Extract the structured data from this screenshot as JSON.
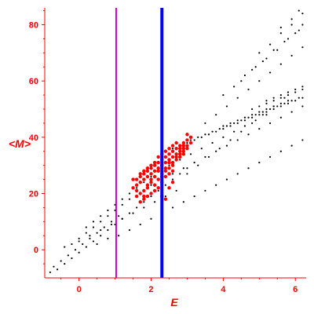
{
  "chart_data": {
    "type": "scatter",
    "title": "",
    "xlabel": "E",
    "ylabel": "<M>",
    "xlim": [
      -0.95,
      6.3
    ],
    "ylim": [
      -10,
      86
    ],
    "x_ticks": [
      0,
      2,
      4,
      6
    ],
    "y_ticks": [
      0,
      20,
      40,
      60,
      80
    ],
    "x_tick_labels": [
      "0",
      "2",
      "4",
      "6"
    ],
    "y_tick_labels": [
      "0",
      "20",
      "40",
      "60",
      "80"
    ],
    "grid": false,
    "legend": "none",
    "colors": {
      "axes": "#ff0000",
      "main_points": "#000000",
      "highlight_points": "#ff0000",
      "line_magenta": "#cc00cc",
      "line_blue": "#0000ff"
    },
    "vertical_lines": [
      {
        "x": 1.03,
        "color": "#cc00cc"
      },
      {
        "x": 2.3,
        "color": "#0000ff"
      }
    ],
    "series": [
      {
        "color": "#000000",
        "points": [
          [
            -0.8,
            -8
          ],
          [
            -0.6,
            -7
          ],
          [
            -0.4,
            -5
          ],
          [
            -0.2,
            -3
          ],
          [
            0.0,
            -1
          ],
          [
            0.2,
            1
          ],
          [
            0.4,
            3
          ],
          [
            0.6,
            5
          ],
          [
            0.8,
            7
          ],
          [
            1.0,
            9
          ],
          [
            1.2,
            11
          ],
          [
            1.4,
            13
          ],
          [
            1.6,
            15
          ],
          [
            1.8,
            17
          ],
          [
            2.0,
            19
          ],
          [
            2.2,
            21
          ],
          [
            2.4,
            23
          ],
          [
            2.6,
            25
          ],
          [
            2.8,
            27
          ],
          [
            3.0,
            29
          ],
          [
            -0.7,
            -6
          ],
          [
            -0.5,
            -4
          ],
          [
            -0.3,
            -2
          ],
          [
            -0.1,
            0
          ],
          [
            0.1,
            2
          ],
          [
            0.3,
            4
          ],
          [
            0.5,
            6
          ],
          [
            0.7,
            8
          ],
          [
            0.9,
            10
          ],
          [
            1.1,
            12
          ],
          [
            -0.4,
            1
          ],
          [
            -0.2,
            2
          ],
          [
            0.0,
            4
          ],
          [
            0.2,
            6
          ],
          [
            0.4,
            8
          ],
          [
            0.6,
            10
          ],
          [
            0.8,
            12
          ],
          [
            1.0,
            14
          ],
          [
            1.2,
            16
          ],
          [
            1.4,
            18
          ],
          [
            0.2,
            8
          ],
          [
            0.4,
            10
          ],
          [
            0.6,
            12
          ],
          [
            0.8,
            14
          ],
          [
            1.0,
            16
          ],
          [
            1.2,
            18
          ],
          [
            1.4,
            20
          ],
          [
            1.6,
            22
          ],
          [
            1.8,
            24
          ],
          [
            2.0,
            26
          ],
          [
            0.0,
            3
          ],
          [
            0.3,
            5
          ],
          [
            0.6,
            7
          ],
          [
            0.9,
            9
          ],
          [
            1.2,
            11
          ],
          [
            1.5,
            13
          ],
          [
            1.8,
            15
          ],
          [
            2.1,
            17
          ],
          [
            2.4,
            19
          ],
          [
            2.7,
            21
          ],
          [
            0.5,
            2
          ],
          [
            0.8,
            4
          ],
          [
            1.1,
            5
          ],
          [
            1.4,
            7
          ],
          [
            1.7,
            9
          ],
          [
            2.0,
            11
          ],
          [
            2.3,
            13
          ],
          [
            2.6,
            15
          ],
          [
            2.9,
            17
          ],
          [
            3.2,
            19
          ],
          [
            3.5,
            21
          ],
          [
            3.8,
            23
          ],
          [
            4.1,
            25
          ],
          [
            4.4,
            27
          ],
          [
            4.7,
            29
          ],
          [
            5.0,
            31
          ],
          [
            5.3,
            33
          ],
          [
            5.6,
            35
          ],
          [
            5.9,
            37
          ],
          [
            6.2,
            39
          ],
          [
            3.0,
            27
          ],
          [
            3.3,
            30
          ],
          [
            3.6,
            33
          ],
          [
            3.9,
            36
          ],
          [
            4.2,
            39
          ],
          [
            4.5,
            42
          ],
          [
            4.8,
            45
          ],
          [
            5.1,
            48
          ],
          [
            5.4,
            51
          ],
          [
            5.7,
            54
          ],
          [
            2.6,
            36
          ],
          [
            2.8,
            37
          ],
          [
            3.0,
            38
          ],
          [
            3.2,
            39
          ],
          [
            3.4,
            40
          ],
          [
            3.6,
            41
          ],
          [
            3.8,
            42
          ],
          [
            4.0,
            43
          ],
          [
            4.2,
            44
          ],
          [
            4.4,
            45
          ],
          [
            4.6,
            46
          ],
          [
            4.8,
            47
          ],
          [
            5.0,
            48
          ],
          [
            5.2,
            49
          ],
          [
            5.4,
            50
          ],
          [
            5.6,
            51
          ],
          [
            5.8,
            52
          ],
          [
            6.0,
            53
          ],
          [
            6.2,
            54
          ],
          [
            3.1,
            39
          ],
          [
            3.3,
            40
          ],
          [
            3.5,
            41
          ],
          [
            3.7,
            42
          ],
          [
            3.9,
            43
          ],
          [
            4.1,
            44
          ],
          [
            4.3,
            45
          ],
          [
            4.5,
            46
          ],
          [
            4.7,
            47
          ],
          [
            4.9,
            48
          ],
          [
            5.1,
            49
          ],
          [
            5.3,
            50
          ],
          [
            5.5,
            51
          ],
          [
            5.7,
            52
          ],
          [
            5.9,
            53
          ],
          [
            6.1,
            54
          ],
          [
            4.0,
            44
          ],
          [
            4.2,
            45
          ],
          [
            4.4,
            46
          ],
          [
            4.6,
            47
          ],
          [
            4.8,
            48
          ],
          [
            5.0,
            49
          ],
          [
            5.2,
            50
          ],
          [
            5.4,
            51
          ],
          [
            5.6,
            52
          ],
          [
            5.8,
            53
          ],
          [
            4.8,
            50
          ],
          [
            5.0,
            51
          ],
          [
            5.2,
            52
          ],
          [
            5.4,
            53
          ],
          [
            5.6,
            54
          ],
          [
            5.8,
            55
          ],
          [
            6.0,
            56
          ],
          [
            6.2,
            57
          ],
          [
            5.2,
            53
          ],
          [
            5.4,
            54
          ],
          [
            5.6,
            55
          ],
          [
            5.8,
            56
          ],
          [
            6.0,
            57
          ],
          [
            6.2,
            58
          ],
          [
            4.0,
            55
          ],
          [
            4.3,
            58
          ],
          [
            4.6,
            62
          ],
          [
            4.9,
            65
          ],
          [
            5.2,
            68
          ],
          [
            5.5,
            71
          ],
          [
            5.8,
            75
          ],
          [
            6.1,
            78
          ],
          [
            4.5,
            60
          ],
          [
            4.8,
            64
          ],
          [
            5.1,
            67
          ],
          [
            5.4,
            71
          ],
          [
            5.7,
            74
          ],
          [
            6.0,
            77
          ],
          [
            6.2,
            80
          ],
          [
            5.0,
            70
          ],
          [
            5.3,
            73
          ],
          [
            5.6,
            77
          ],
          [
            5.9,
            80
          ],
          [
            6.2,
            84
          ],
          [
            5.6,
            79
          ],
          [
            5.9,
            82
          ],
          [
            6.1,
            85
          ],
          [
            3.5,
            45
          ],
          [
            3.8,
            48
          ],
          [
            4.1,
            51
          ],
          [
            4.4,
            54
          ],
          [
            4.7,
            57
          ],
          [
            5.0,
            60
          ],
          [
            5.3,
            63
          ],
          [
            5.6,
            66
          ],
          [
            5.9,
            69
          ],
          [
            6.2,
            72
          ],
          [
            2.5,
            30
          ],
          [
            2.8,
            32
          ],
          [
            3.1,
            34
          ],
          [
            3.4,
            36
          ],
          [
            3.7,
            38
          ],
          [
            4.0,
            40
          ],
          [
            4.3,
            42
          ],
          [
            4.6,
            44
          ],
          [
            4.9,
            46
          ],
          [
            5.2,
            48
          ],
          [
            2.0,
            23
          ],
          [
            2.3,
            25
          ],
          [
            2.6,
            27
          ],
          [
            2.9,
            29
          ],
          [
            3.2,
            31
          ],
          [
            3.5,
            33
          ],
          [
            3.8,
            35
          ],
          [
            4.1,
            37
          ],
          [
            4.4,
            39
          ],
          [
            4.7,
            41
          ],
          [
            5.0,
            43
          ],
          [
            5.3,
            45
          ],
          [
            5.6,
            47
          ],
          [
            5.9,
            49
          ],
          [
            6.2,
            51
          ]
        ]
      },
      {
        "color": "#ff0000",
        "points": [
          [
            1.7,
            26
          ],
          [
            1.8,
            27
          ],
          [
            1.9,
            28
          ],
          [
            2.0,
            29
          ],
          [
            2.1,
            30
          ],
          [
            2.2,
            31
          ],
          [
            2.3,
            32
          ],
          [
            2.4,
            33
          ],
          [
            2.5,
            34
          ],
          [
            2.6,
            35
          ],
          [
            2.7,
            36
          ],
          [
            2.8,
            37
          ],
          [
            2.9,
            38
          ],
          [
            3.0,
            39
          ],
          [
            3.1,
            38
          ],
          [
            3.0,
            37
          ],
          [
            2.9,
            36
          ],
          [
            2.8,
            35
          ],
          [
            2.7,
            34
          ],
          [
            2.6,
            33
          ],
          [
            2.5,
            32
          ],
          [
            2.4,
            31
          ],
          [
            2.3,
            30
          ],
          [
            2.2,
            29
          ],
          [
            2.1,
            28
          ],
          [
            2.0,
            27
          ],
          [
            1.9,
            26
          ],
          [
            1.8,
            25
          ],
          [
            1.7,
            24
          ],
          [
            1.6,
            23
          ],
          [
            1.5,
            22
          ],
          [
            1.6,
            21
          ],
          [
            1.7,
            20
          ],
          [
            1.8,
            19
          ],
          [
            1.9,
            22
          ],
          [
            2.0,
            24
          ],
          [
            2.1,
            26
          ],
          [
            2.2,
            28
          ],
          [
            2.3,
            27
          ],
          [
            2.4,
            29
          ],
          [
            2.5,
            31
          ],
          [
            2.6,
            30
          ],
          [
            2.7,
            32
          ],
          [
            2.8,
            33
          ],
          [
            2.9,
            34
          ],
          [
            3.0,
            36
          ],
          [
            1.8,
            21
          ],
          [
            1.9,
            23
          ],
          [
            2.0,
            25
          ],
          [
            2.1,
            23
          ],
          [
            2.2,
            25
          ],
          [
            2.3,
            26
          ],
          [
            2.4,
            28
          ],
          [
            2.5,
            29
          ],
          [
            2.6,
            31
          ],
          [
            2.7,
            33
          ],
          [
            2.8,
            34
          ],
          [
            2.9,
            35
          ],
          [
            1.6,
            25
          ],
          [
            1.7,
            27
          ],
          [
            1.8,
            28
          ],
          [
            1.9,
            29
          ],
          [
            2.0,
            30
          ],
          [
            2.1,
            31
          ],
          [
            2.2,
            33
          ],
          [
            2.3,
            34
          ],
          [
            2.4,
            35
          ],
          [
            2.5,
            36
          ],
          [
            2.6,
            37
          ],
          [
            2.7,
            38
          ],
          [
            3.0,
            41
          ],
          [
            3.1,
            40
          ],
          [
            2.9,
            37
          ],
          [
            2.8,
            36
          ],
          [
            2.6,
            28
          ],
          [
            2.5,
            27
          ],
          [
            2.4,
            26
          ],
          [
            2.3,
            24
          ],
          [
            2.2,
            22
          ],
          [
            2.1,
            21
          ],
          [
            2.0,
            20
          ],
          [
            1.9,
            19
          ],
          [
            1.8,
            18
          ],
          [
            1.7,
            17
          ],
          [
            2.4,
            18
          ],
          [
            2.3,
            19
          ],
          [
            2.5,
            22
          ],
          [
            2.6,
            24
          ],
          [
            1.6,
            19
          ],
          [
            1.5,
            25
          ]
        ]
      }
    ]
  }
}
